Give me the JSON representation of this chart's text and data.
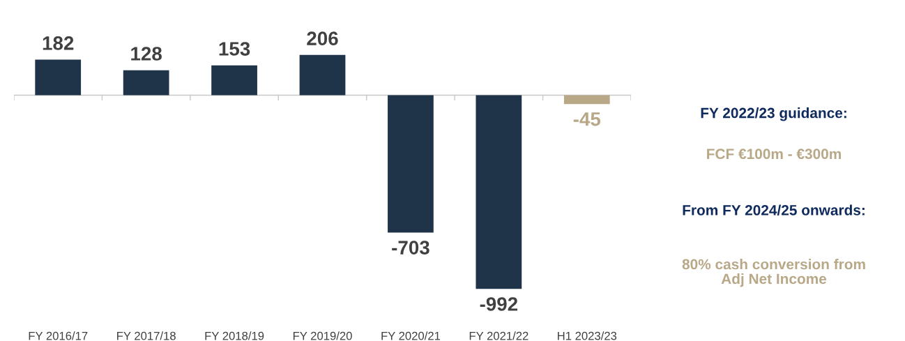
{
  "chart_data": {
    "type": "bar",
    "categories": [
      "FY 2016/17",
      "FY 2017/18",
      "FY 2018/19",
      "FY 2019/20",
      "FY 2020/21",
      "FY 2021/22",
      "H1 2023/23"
    ],
    "values": [
      182,
      128,
      153,
      206,
      -703,
      -992,
      -45
    ],
    "colors": [
      "#1f3349",
      "#1f3349",
      "#1f3349",
      "#1f3349",
      "#1f3349",
      "#1f3349",
      "#b8a888"
    ],
    "data_labels": true,
    "annotations": [
      "FY 2022/23 guidance:",
      "FCF €100m - €300m",
      "From FY 2024/25 onwards:",
      "80% cash conversion from Adj Net Income"
    ],
    "grid": false,
    "legend": false
  }
}
